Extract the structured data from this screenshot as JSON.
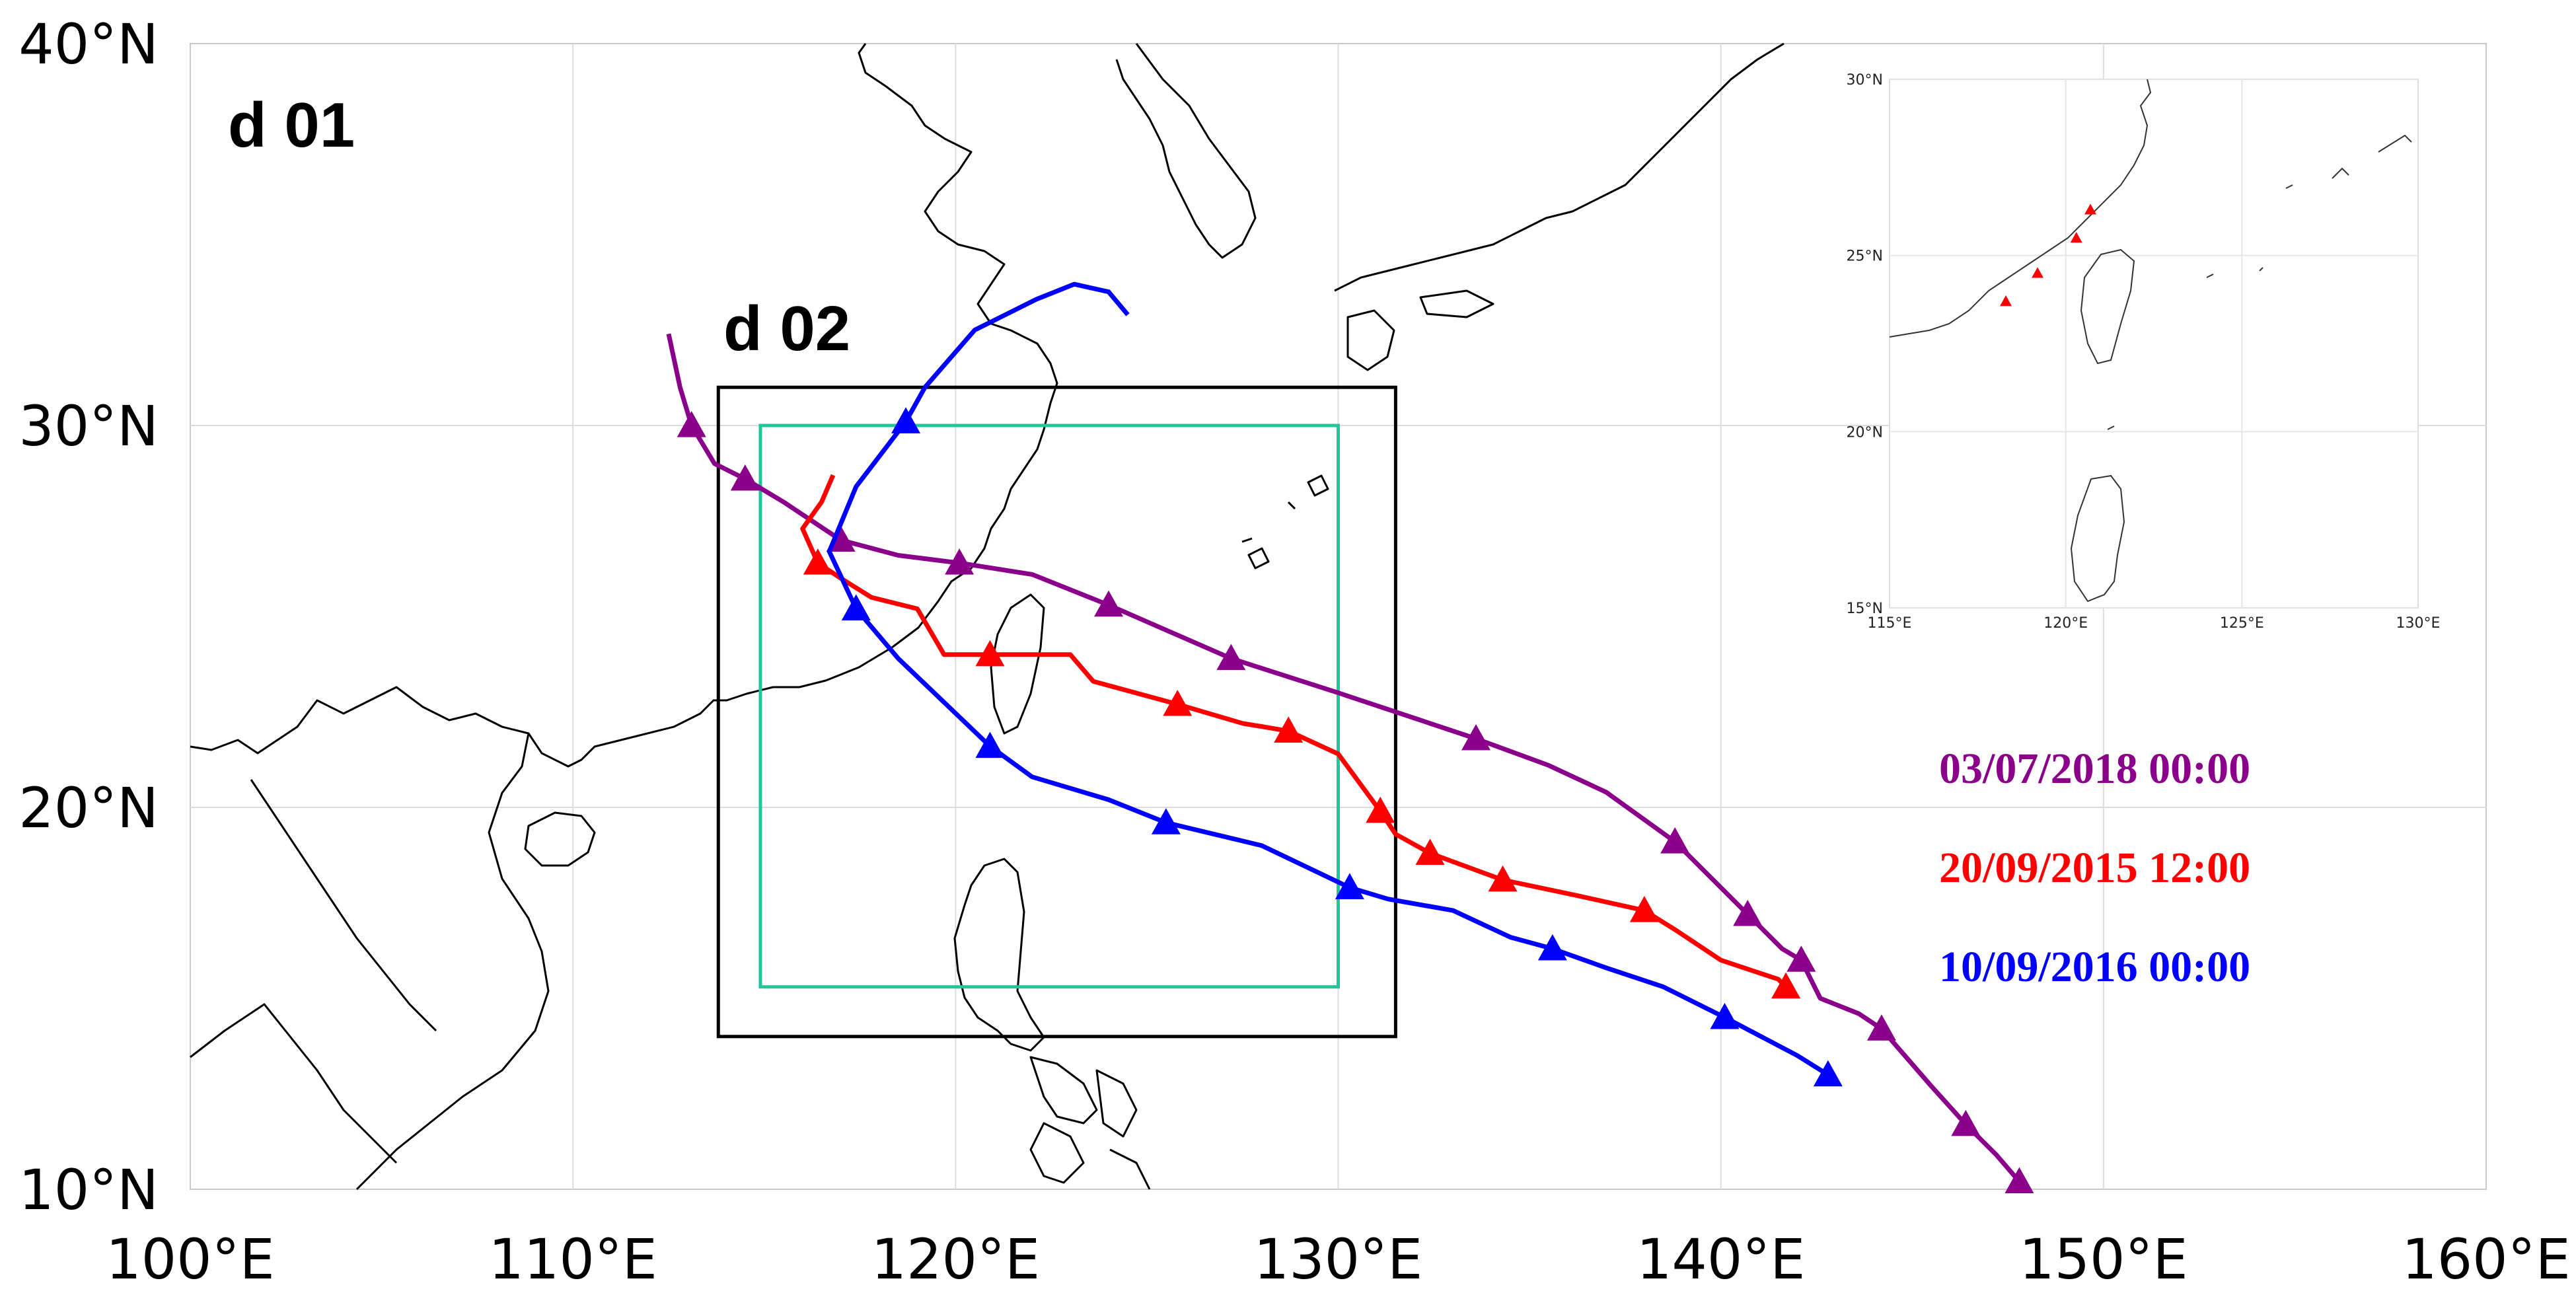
{
  "map": {
    "x_ticks": [
      "100°E",
      "110°E",
      "120°E",
      "130°E",
      "140°E",
      "150°E",
      "160°E"
    ],
    "y_ticks": [
      "10°N",
      "20°N",
      "30°N",
      "40°N"
    ],
    "lon_range": [
      100,
      160
    ],
    "lat_range": [
      10,
      40
    ],
    "domains": [
      {
        "id": "d01",
        "label": "d 01"
      },
      {
        "id": "d02",
        "label": "d 02",
        "color": "#000000",
        "lon": [
          113.8,
          131.5
        ],
        "lat": [
          14.0,
          31.0
        ]
      },
      {
        "id": "d03",
        "label": "",
        "color": "#1fc79a",
        "lon": [
          114.9,
          130.0
        ],
        "lat": [
          15.3,
          30.0
        ]
      }
    ]
  },
  "tracks": [
    {
      "name": "03/07/2018 00:00",
      "color": "#8b008b",
      "line": [
        [
          112.5,
          32.4
        ],
        [
          112.8,
          31
        ],
        [
          113.1,
          30
        ],
        [
          113.7,
          29
        ],
        [
          114.5,
          28.6
        ],
        [
          115.5,
          28
        ],
        [
          117,
          27
        ],
        [
          118.5,
          26.6
        ],
        [
          120.1,
          26.4
        ],
        [
          122,
          26.1
        ],
        [
          124,
          25.3
        ],
        [
          127.2,
          23.9
        ],
        [
          130,
          23
        ],
        [
          133.6,
          21.8
        ],
        [
          135.5,
          21.1
        ],
        [
          137,
          20.4
        ],
        [
          138.8,
          19.1
        ],
        [
          139.8,
          18.1
        ],
        [
          140.7,
          17.2
        ],
        [
          141.6,
          16.3
        ],
        [
          142.1,
          16
        ],
        [
          142.6,
          15
        ],
        [
          143.6,
          14.6
        ],
        [
          144.2,
          14.2
        ],
        [
          145.5,
          12.7
        ],
        [
          146.4,
          11.7
        ],
        [
          147.2,
          10.9
        ],
        [
          147.8,
          10.2
        ]
      ],
      "markers": [
        [
          113.1,
          30
        ],
        [
          114.5,
          28.6
        ],
        [
          117,
          27
        ],
        [
          120.1,
          26.4
        ],
        [
          124,
          25.3
        ],
        [
          127.2,
          23.9
        ],
        [
          133.6,
          21.8
        ],
        [
          138.8,
          19.1
        ],
        [
          140.7,
          17.2
        ],
        [
          142.1,
          16
        ],
        [
          144.2,
          14.2
        ],
        [
          146.4,
          11.7
        ],
        [
          147.8,
          10.2
        ]
      ]
    },
    {
      "name": "20/09/2015 12:00",
      "color": "#ff0000",
      "line": [
        [
          116.8,
          28.7
        ],
        [
          116.5,
          28
        ],
        [
          116,
          27.3
        ],
        [
          116.4,
          26.4
        ],
        [
          117,
          26
        ],
        [
          117.8,
          25.5
        ],
        [
          119,
          25.2
        ],
        [
          119.7,
          24
        ],
        [
          120.9,
          24
        ],
        [
          123,
          24
        ],
        [
          123.6,
          23.3
        ],
        [
          125.8,
          22.7
        ],
        [
          127.5,
          22.2
        ],
        [
          128.7,
          22
        ],
        [
          130,
          21.4
        ],
        [
          131.1,
          19.9
        ],
        [
          131.5,
          19.3
        ],
        [
          132.4,
          18.8
        ],
        [
          134.3,
          18.1
        ],
        [
          136.2,
          17.7
        ],
        [
          138,
          17.3
        ],
        [
          138.8,
          16.8
        ],
        [
          140,
          16
        ],
        [
          141.5,
          15.5
        ],
        [
          141.7,
          15.3
        ]
      ],
      "markers": [
        [
          116.4,
          26.4
        ],
        [
          120.9,
          24
        ],
        [
          125.8,
          22.7
        ],
        [
          128.7,
          22
        ],
        [
          131.1,
          19.9
        ],
        [
          132.4,
          18.8
        ],
        [
          134.3,
          18.1
        ],
        [
          138,
          17.3
        ],
        [
          141.7,
          15.3
        ]
      ]
    },
    {
      "name": "10/09/2016 00:00",
      "color": "#0000ff",
      "line": [
        [
          124.5,
          32.9
        ],
        [
          124,
          33.5
        ],
        [
          123.1,
          33.7
        ],
        [
          122.1,
          33.3
        ],
        [
          120.5,
          32.5
        ],
        [
          119.2,
          31
        ],
        [
          118.7,
          30.1
        ],
        [
          117.4,
          28.4
        ],
        [
          116.7,
          26.7
        ],
        [
          117.4,
          25.2
        ],
        [
          118.5,
          23.9
        ],
        [
          120.9,
          21.6
        ],
        [
          122,
          20.8
        ],
        [
          124,
          20.2
        ],
        [
          125.5,
          19.6
        ],
        [
          128,
          19
        ],
        [
          130.3,
          17.9
        ],
        [
          131.3,
          17.6
        ],
        [
          133,
          17.3
        ],
        [
          134.5,
          16.6
        ],
        [
          135.6,
          16.3
        ],
        [
          137,
          15.8
        ],
        [
          138.5,
          15.3
        ],
        [
          140.1,
          14.5
        ],
        [
          142,
          13.5
        ],
        [
          142.8,
          13
        ]
      ],
      "markers": [
        [
          118.7,
          30.1
        ],
        [
          117.4,
          25.2
        ],
        [
          120.9,
          21.6
        ],
        [
          125.5,
          19.6
        ],
        [
          130.3,
          17.9
        ],
        [
          135.6,
          16.3
        ],
        [
          140.1,
          14.5
        ],
        [
          142.8,
          13
        ]
      ]
    }
  ],
  "inset": {
    "x_ticks": [
      "115°E",
      "120°E",
      "125°E",
      "130°E"
    ],
    "y_ticks": [
      "15°N",
      "20°N",
      "25°N",
      "30°N"
    ],
    "lon_range": [
      115,
      130
    ],
    "lat_range": [
      15,
      30
    ],
    "marker_color": "#ff0000",
    "markers": [
      [
        118.3,
        23.7
      ],
      [
        119.2,
        24.5
      ],
      [
        120.3,
        25.5
      ],
      [
        120.7,
        26.3
      ]
    ]
  }
}
